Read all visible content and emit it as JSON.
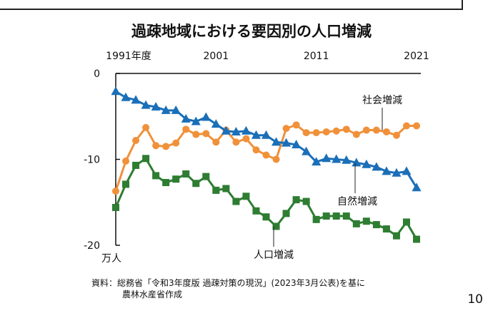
{
  "title": "過疎地域における要因別の人口増減",
  "chart_data": {
    "type": "line",
    "title": "過疎地域における要因別の人口増減",
    "x": [
      1991,
      1992,
      1993,
      1994,
      1995,
      1996,
      1997,
      1998,
      1999,
      2000,
      2001,
      2002,
      2003,
      2004,
      2005,
      2006,
      2007,
      2008,
      2009,
      2010,
      2011,
      2012,
      2013,
      2014,
      2015,
      2016,
      2017,
      2018,
      2019,
      2020,
      2021
    ],
    "x_tick_labels": [
      {
        "x": 1991,
        "label": "1991年度"
      },
      {
        "x": 2001,
        "label": "2001"
      },
      {
        "x": 2011,
        "label": "2011"
      },
      {
        "x": 2021,
        "label": "2021"
      }
    ],
    "x_axis_position": "top",
    "ylim": [
      -20,
      0
    ],
    "y_ticks": [
      0,
      -10,
      -20
    ],
    "y_unit": "万人",
    "grid": false,
    "series": [
      {
        "name": "社会増減",
        "color": "#F0913A",
        "marker": "circle",
        "values": [
          -13.7,
          -10.2,
          -7.8,
          -6.3,
          -8.4,
          -8.5,
          -8.1,
          -6.5,
          -7.1,
          -7.0,
          -8.0,
          -6.6,
          -8.0,
          -7.6,
          -8.9,
          -9.5,
          -10.0,
          -6.4,
          -6.0,
          -6.9,
          -6.9,
          -6.8,
          -6.7,
          -6.5,
          -7.1,
          -6.6,
          -6.6,
          -6.8,
          -7.2,
          -6.1,
          -6.1
        ]
      },
      {
        "name": "自然増減",
        "color": "#1A6FB8",
        "marker": "triangle",
        "values": [
          -2.1,
          -2.8,
          -3.1,
          -3.7,
          -3.9,
          -4.3,
          -4.3,
          -5.3,
          -5.6,
          -5.1,
          -5.9,
          -6.7,
          -6.8,
          -6.7,
          -7.2,
          -7.2,
          -8.0,
          -8.1,
          -8.3,
          -9.1,
          -10.3,
          -9.9,
          -10.0,
          -10.1,
          -10.4,
          -10.6,
          -10.9,
          -11.4,
          -11.6,
          -11.4,
          -13.3
        ]
      },
      {
        "name": "人口増減",
        "color": "#2E7D32",
        "marker": "square",
        "values": [
          -15.6,
          -12.9,
          -10.7,
          -9.9,
          -11.9,
          -12.7,
          -12.3,
          -11.7,
          -12.8,
          -12.0,
          -13.6,
          -13.4,
          -14.9,
          -14.3,
          -16.0,
          -16.7,
          -17.8,
          -16.3,
          -14.7,
          -14.9,
          -17.0,
          -16.6,
          -16.6,
          -16.6,
          -17.5,
          -17.2,
          -17.6,
          -18.1,
          -18.9,
          -17.3,
          -19.3
        ]
      }
    ]
  },
  "source_line1": "資料：総務省「令和3年度版 過疎対策の現況」(2023年3月公表)を基に",
  "source_line2": "農林水産省作成",
  "page_number": "10"
}
